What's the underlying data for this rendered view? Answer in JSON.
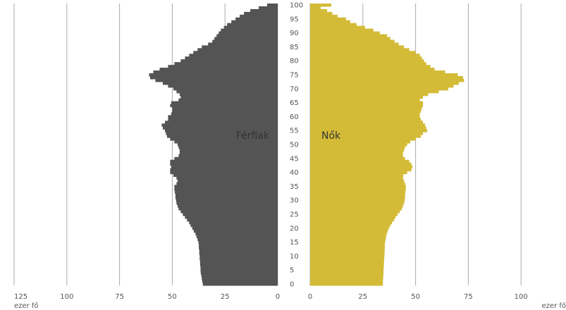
{
  "chart_data": {
    "type": "bar",
    "subtype": "population-pyramid",
    "title": "",
    "unit_label": "ezer fő",
    "xlim": [
      0,
      125
    ],
    "x_ticks": [
      125,
      100,
      75,
      50,
      25,
      0
    ],
    "x_ticks_right": [
      0,
      25,
      50,
      75,
      100,
      125
    ],
    "age_ticks": [
      100,
      95,
      90,
      85,
      80,
      75,
      70,
      65,
      60,
      55,
      50,
      45,
      40,
      35,
      30,
      25,
      20,
      15,
      10,
      5,
      0
    ],
    "grid": true,
    "colors": {
      "male": "#545454",
      "female": "#d4bb37",
      "grid": "#aaaaaa"
    },
    "series": [
      {
        "name": "Férfiak",
        "side": "left",
        "ages": [
          0,
          1,
          2,
          3,
          4,
          5,
          6,
          7,
          8,
          9,
          10,
          11,
          12,
          13,
          14,
          15,
          16,
          17,
          18,
          19,
          20,
          21,
          22,
          23,
          24,
          25,
          26,
          27,
          28,
          29,
          30,
          31,
          32,
          33,
          34,
          35,
          36,
          37,
          38,
          39,
          40,
          41,
          42,
          43,
          44,
          45,
          46,
          47,
          48,
          49,
          50,
          51,
          52,
          53,
          54,
          55,
          56,
          57,
          58,
          59,
          60,
          61,
          62,
          63,
          64,
          65,
          66,
          67,
          68,
          69,
          70,
          71,
          72,
          73,
          74,
          75,
          76,
          77,
          78,
          79,
          80,
          81,
          82,
          83,
          84,
          85,
          86,
          87,
          88,
          89,
          90,
          91,
          92,
          93,
          94,
          95,
          96,
          97,
          98,
          99,
          100
        ],
        "values": [
          35.5,
          35.8,
          36,
          36.2,
          36.5,
          36.6,
          36.6,
          36.8,
          36.8,
          37,
          37,
          37.2,
          37.2,
          37.4,
          37.4,
          37.6,
          38,
          38.5,
          39,
          39.8,
          40.5,
          41.3,
          42,
          43,
          44,
          45,
          46,
          47,
          47.5,
          48,
          48.2,
          48.5,
          48.5,
          48.8,
          49,
          49,
          48,
          47.5,
          48,
          49.5,
          51,
          51,
          50.5,
          51,
          51,
          49,
          47,
          46.5,
          46.5,
          47,
          47.5,
          49,
          51,
          52.5,
          53,
          53.5,
          54.5,
          55,
          53.5,
          52,
          52,
          50.5,
          50,
          50,
          51,
          50.5,
          47,
          46,
          46.5,
          48,
          49.5,
          52,
          54.5,
          58,
          60.5,
          61,
          59,
          56,
          52,
          49,
          46,
          44,
          42,
          40,
          38,
          36,
          33,
          31,
          30,
          29,
          28,
          27,
          25.5,
          24,
          22,
          20,
          18,
          16,
          13,
          9,
          5
        ]
      },
      {
        "name": "Nők",
        "side": "right",
        "ages": [
          0,
          1,
          2,
          3,
          4,
          5,
          6,
          7,
          8,
          9,
          10,
          11,
          12,
          13,
          14,
          15,
          16,
          17,
          18,
          19,
          20,
          21,
          22,
          23,
          24,
          25,
          26,
          27,
          28,
          29,
          30,
          31,
          32,
          33,
          34,
          35,
          36,
          37,
          38,
          39,
          40,
          41,
          42,
          43,
          44,
          45,
          46,
          47,
          48,
          49,
          50,
          51,
          52,
          53,
          54,
          55,
          56,
          57,
          58,
          59,
          60,
          61,
          62,
          63,
          64,
          65,
          66,
          67,
          68,
          69,
          70,
          71,
          72,
          73,
          74,
          75,
          76,
          77,
          78,
          79,
          80,
          81,
          82,
          83,
          84,
          85,
          86,
          87,
          88,
          89,
          90,
          91,
          92,
          93,
          94,
          95,
          96,
          97,
          98,
          99,
          100
        ],
        "values": [
          34.5,
          34.5,
          34.6,
          34.7,
          34.8,
          34.8,
          34.9,
          35,
          35,
          35.1,
          35.2,
          35.3,
          35.3,
          35.4,
          35.4,
          35.5,
          35.8,
          36,
          36.3,
          36.8,
          37.3,
          38,
          38.8,
          39.8,
          40.5,
          41.5,
          42.5,
          43.5,
          44,
          44.5,
          44.8,
          45,
          45,
          45.2,
          45.3,
          45.4,
          45,
          44.5,
          44,
          44.2,
          46,
          48,
          48.5,
          48,
          47,
          45,
          44,
          44,
          44.5,
          45,
          46,
          47.5,
          50,
          52.5,
          53.5,
          55.5,
          55,
          54.5,
          53.5,
          52.5,
          52,
          52,
          52.5,
          53,
          53.5,
          53.5,
          52,
          53.5,
          56,
          61,
          65.5,
          68,
          70.5,
          73,
          72.5,
          70,
          64,
          59,
          57,
          55,
          54,
          53,
          52,
          50,
          47,
          44.5,
          42,
          40,
          38,
          36.5,
          33,
          30,
          26,
          22,
          19,
          17,
          13,
          10.5,
          8,
          5,
          10
        ]
      }
    ],
    "series_labels_positioning": "inside-center"
  }
}
